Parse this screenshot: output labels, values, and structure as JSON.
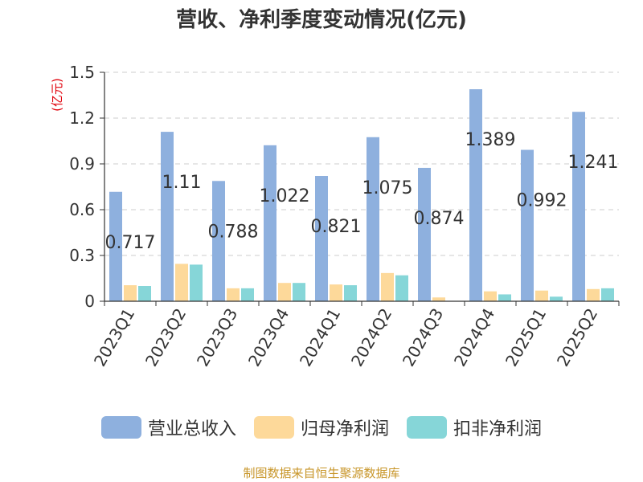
{
  "chart_data": {
    "type": "bar",
    "title": "营收、净利季度变动情况(亿元)",
    "ylabel": "(亿元)",
    "ylim": [
      0,
      1.5
    ],
    "yticks": [
      "0",
      "0.3",
      "0.6",
      "0.9",
      "1.2",
      "1.5"
    ],
    "categories": [
      "2023Q1",
      "2023Q2",
      "2023Q3",
      "2023Q4",
      "2024Q1",
      "2024Q2",
      "2024Q3",
      "2024Q4",
      "2025Q1",
      "2025Q2"
    ],
    "series": [
      {
        "name": "营业总收入",
        "color": "#8eb0de",
        "values": [
          0.717,
          1.11,
          0.788,
          1.022,
          0.821,
          1.075,
          0.874,
          1.389,
          0.992,
          1.241
        ],
        "labels": [
          "0.717",
          "1.11",
          "0.788",
          "1.022",
          "0.821",
          "1.075",
          "0.874",
          "1.389",
          "0.992",
          "1.241"
        ]
      },
      {
        "name": "归母净利润",
        "color": "#fdd99a",
        "values": [
          0.105,
          0.245,
          0.085,
          0.12,
          0.11,
          0.185,
          0.025,
          0.065,
          0.07,
          0.08
        ]
      },
      {
        "name": "扣非净利润",
        "color": "#86d6d8",
        "values": [
          0.1,
          0.24,
          0.085,
          0.12,
          0.105,
          0.17,
          0.0,
          0.045,
          0.03,
          0.085
        ]
      }
    ],
    "grid": true,
    "legend": "bottom"
  },
  "source": "制图数据来自恒生聚源数据库",
  "colors": {
    "axis": "#333333",
    "grid": "#cccccc",
    "ylabel": "#e0000a",
    "source": "#c8962a"
  }
}
